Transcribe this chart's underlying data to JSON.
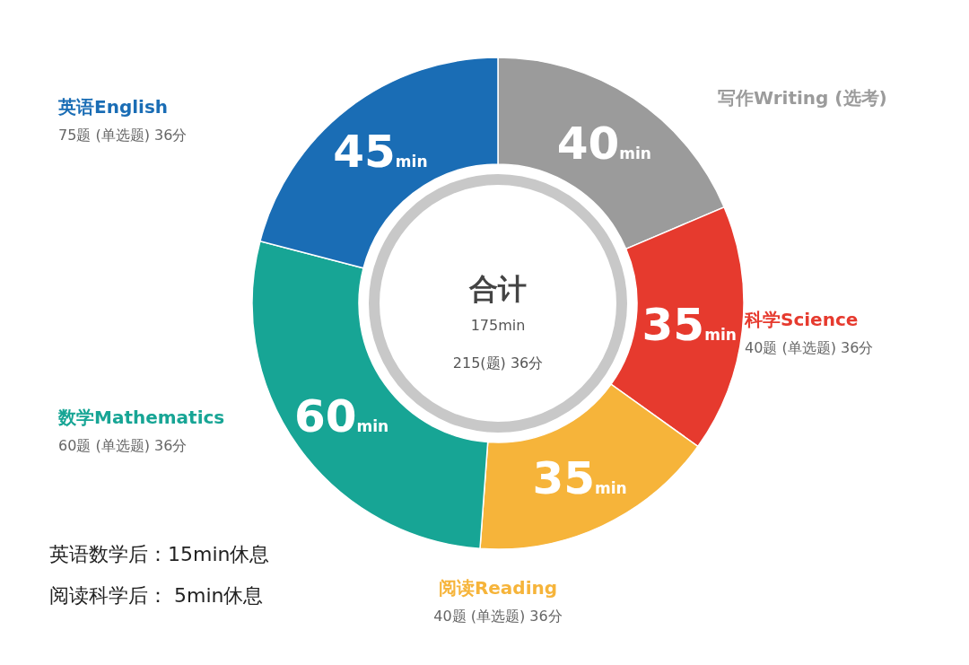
{
  "chart_data": {
    "type": "donut",
    "title": "合计",
    "subtitle": "175min",
    "categories": [
      "写作Writing (选考)",
      "科学Science",
      "阅读Reading",
      "数学Mathematics",
      "英语English"
    ],
    "values": [
      40,
      35,
      35,
      60,
      45
    ],
    "colors": [
      "#9b9b9b",
      "#e63a2e",
      "#f6b43a",
      "#17a595",
      "#1a6db5"
    ],
    "value_labels": [
      "40min",
      "35min",
      "35min",
      "60min",
      "45min"
    ],
    "annotations": [
      "215(题) 36分",
      {
        "text": "40题 (单选题) 36分",
        "x": "科学Science"
      },
      {
        "text": "40题 (单选题) 36分",
        "x": "阅读Reading"
      },
      {
        "text": "60题 (单选题) 36分",
        "x": "数学Mathematics"
      },
      {
        "text": "75题 (单选题) 36分",
        "x": "英语English"
      },
      "英语数学后：15min休息",
      "阅读科学后：  5min休息"
    ]
  }
}
